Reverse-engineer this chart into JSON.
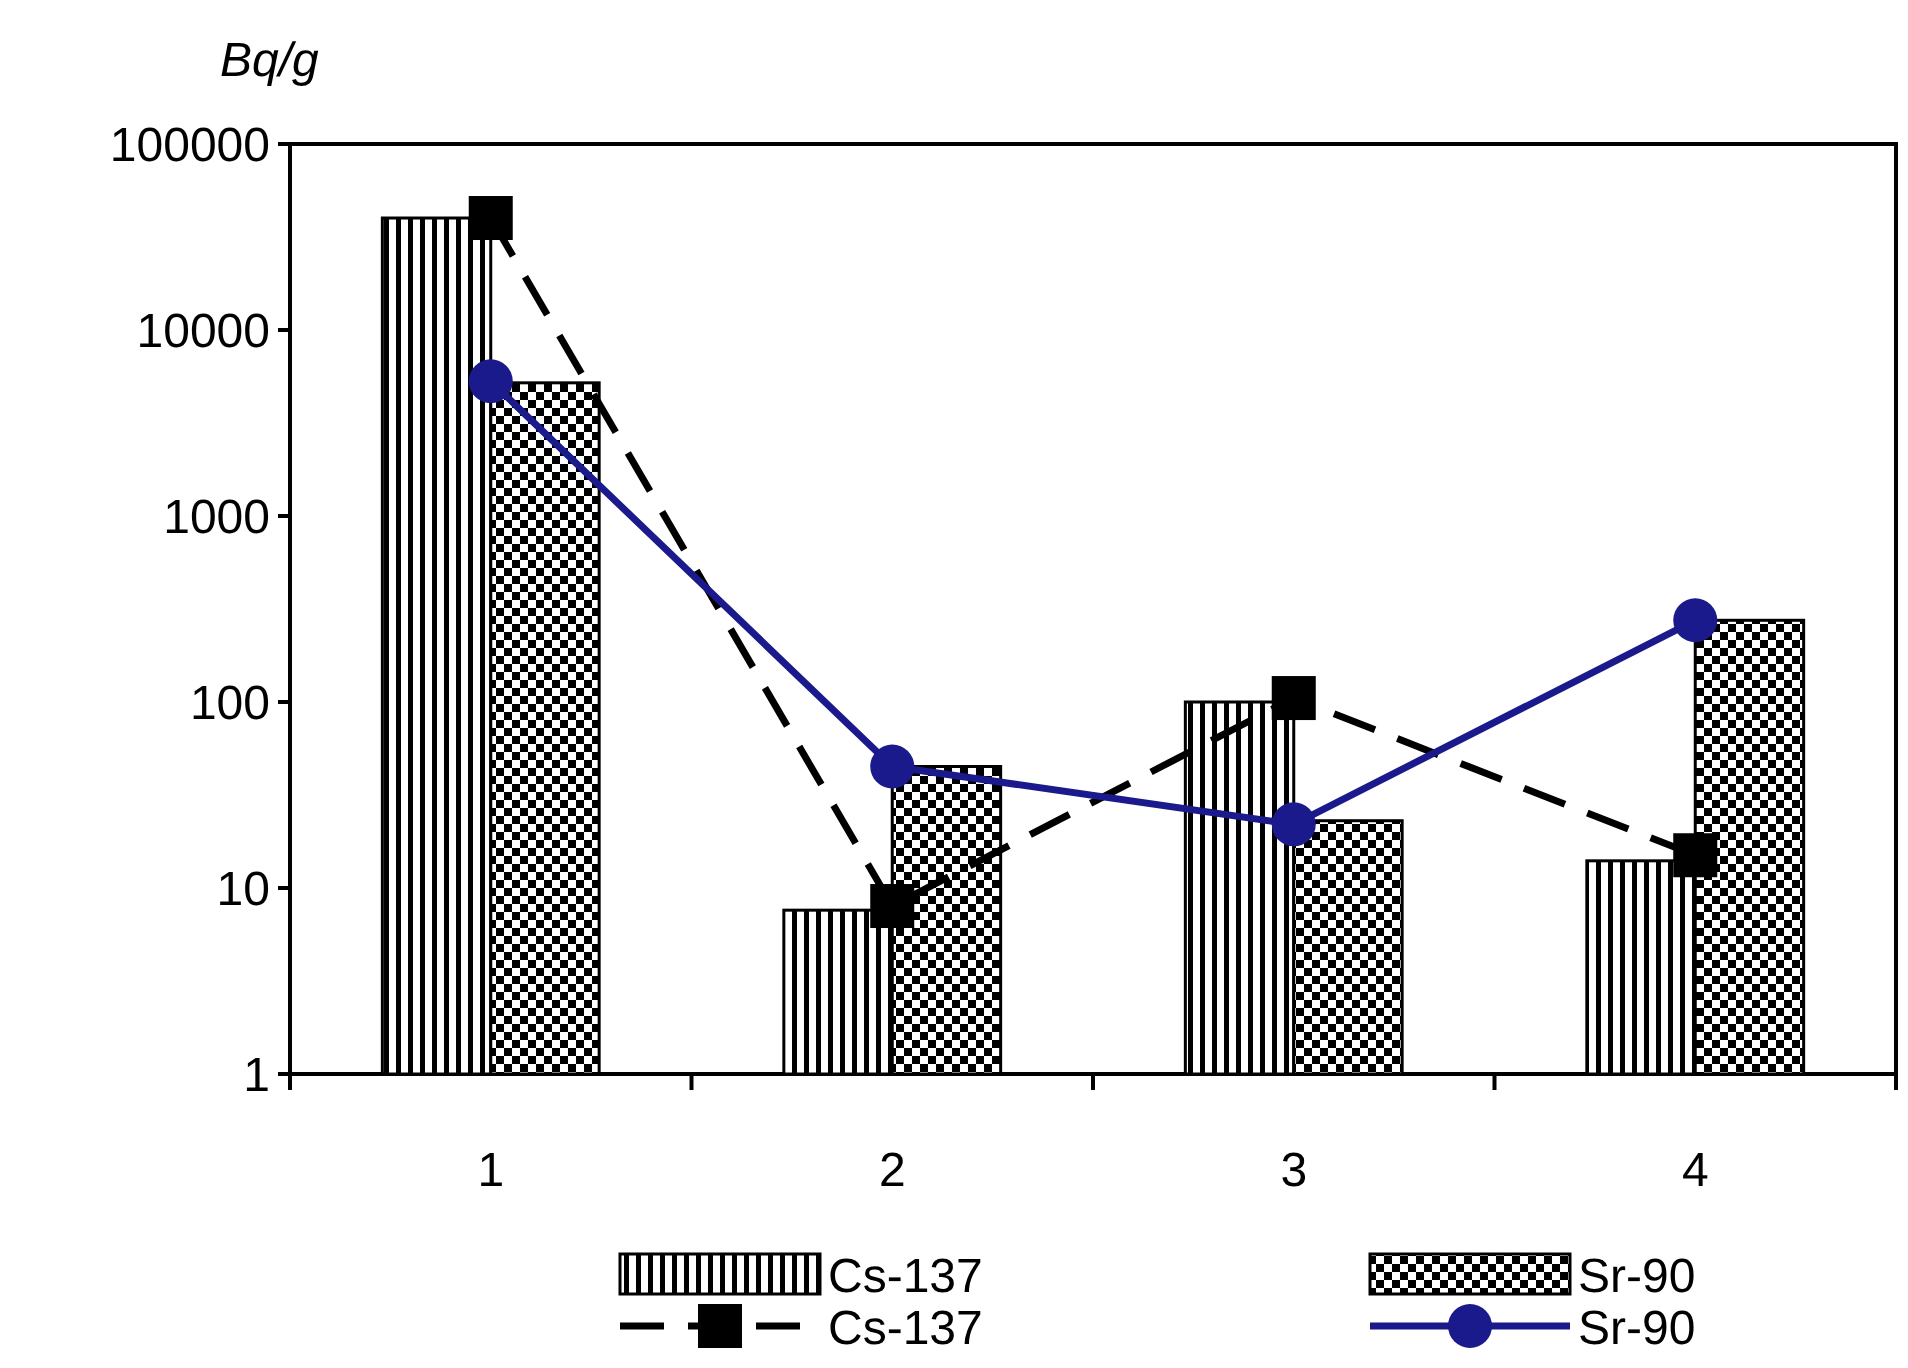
{
  "chart_data": {
    "type": "bar",
    "ylabel": "Bq/g",
    "categories": [
      "1",
      "2",
      "3",
      "4"
    ],
    "log": "y",
    "ylim": [
      1,
      100000
    ],
    "yticks": [
      1,
      10,
      100,
      1000,
      10000,
      100000
    ],
    "legend": "bottom",
    "grid": false,
    "series": [
      {
        "name": "Cs-137",
        "color": "#000000",
        "values": [
          40000,
          7.6,
          100,
          14
        ]
      },
      {
        "name": "Sr-90",
        "color": "#000000",
        "values": [
          5200,
          45,
          23,
          275
        ]
      },
      {
        "name": "Cs-137",
        "type": "line",
        "color": "#000000",
        "marker": "square",
        "line_style": "dashed",
        "values": [
          40000,
          8,
          105,
          15
        ]
      },
      {
        "name": "Sr-90",
        "type": "line",
        "color": "#1a1a8c",
        "marker": "circle",
        "line_style": "solid",
        "values": [
          5300,
          45,
          22,
          275
        ]
      }
    ]
  }
}
